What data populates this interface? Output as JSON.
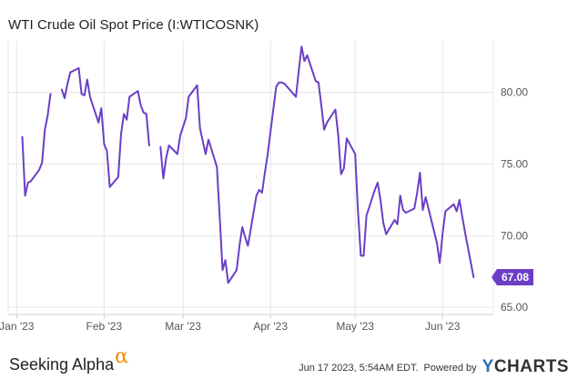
{
  "title": "WTI Crude Oil Spot Price (I:WTICOSNK)",
  "branding": {
    "left_text": "Seeking Alpha",
    "left_glyph": "α",
    "timestamp": "Jun 17 2023, 5:54AM EDT.",
    "powered_by": "Powered by",
    "provider_letter": "Y",
    "provider_rest": "CHARTS"
  },
  "colors": {
    "line": "#6a3fc6",
    "grid": "#e6e6e6",
    "axis_text": "#555555",
    "end_label_bg": "#6a3fc6",
    "end_label_text": "#ffffff"
  },
  "chart_data": {
    "type": "line",
    "title": "WTI Crude Oil Spot Price (I:WTICOSNK)",
    "xlabel": "",
    "ylabel": "",
    "x_ticks": [
      "Jan '23",
      "Feb '23",
      "Mar '23",
      "Apr '23",
      "May '23",
      "Jun '23"
    ],
    "x_tick_dates": [
      "2023-01-01",
      "2023-02-01",
      "2023-03-01",
      "2023-04-01",
      "2023-05-01",
      "2023-06-01"
    ],
    "y_ticks": [
      "65.00",
      "70.00",
      "75.00",
      "80.00"
    ],
    "ylim": [
      64.5,
      83.6
    ],
    "xlim": [
      "2022-12-29",
      "2023-06-19"
    ],
    "grid": true,
    "y_axis_side": "right",
    "end_value_label": "67.08",
    "series": [
      {
        "segments": [
          [
            [
              "2023-01-03",
              76.9
            ],
            [
              "2023-01-04",
              72.8
            ],
            [
              "2023-01-05",
              73.7
            ],
            [
              "2023-01-06",
              73.8
            ],
            [
              "2023-01-09",
              74.6
            ],
            [
              "2023-01-10",
              75.1
            ],
            [
              "2023-01-11",
              77.4
            ],
            [
              "2023-01-12",
              78.4
            ],
            [
              "2023-01-13",
              79.9
            ]
          ],
          [
            [
              "2023-01-17",
              80.2
            ],
            [
              "2023-01-18",
              79.6
            ],
            [
              "2023-01-19",
              80.6
            ],
            [
              "2023-01-20",
              81.4
            ],
            [
              "2023-01-23",
              81.7
            ],
            [
              "2023-01-24",
              79.9
            ],
            [
              "2023-01-25",
              79.8
            ],
            [
              "2023-01-26",
              80.9
            ],
            [
              "2023-01-27",
              79.7
            ],
            [
              "2023-01-30",
              77.9
            ],
            [
              "2023-01-31",
              78.9
            ],
            [
              "2023-02-01",
              76.4
            ],
            [
              "2023-02-02",
              75.9
            ],
            [
              "2023-02-03",
              73.4
            ],
            [
              "2023-02-06",
              74.1
            ],
            [
              "2023-02-07",
              77.1
            ],
            [
              "2023-02-08",
              78.5
            ],
            [
              "2023-02-09",
              78.1
            ],
            [
              "2023-02-10",
              79.7
            ],
            [
              "2023-02-13",
              80.1
            ],
            [
              "2023-02-14",
              79.1
            ],
            [
              "2023-02-15",
              78.6
            ],
            [
              "2023-02-16",
              78.5
            ],
            [
              "2023-02-17",
              76.3
            ]
          ],
          [
            [
              "2023-02-21",
              76.2
            ],
            [
              "2023-02-22",
              74.0
            ],
            [
              "2023-02-23",
              75.4
            ],
            [
              "2023-02-24",
              76.3
            ],
            [
              "2023-02-27",
              75.7
            ],
            [
              "2023-02-28",
              77.0
            ],
            [
              "2023-03-01",
              77.6
            ],
            [
              "2023-03-02",
              78.2
            ],
            [
              "2023-03-03",
              79.7
            ],
            [
              "2023-03-06",
              80.5
            ],
            [
              "2023-03-07",
              77.5
            ],
            [
              "2023-03-08",
              76.6
            ],
            [
              "2023-03-09",
              75.7
            ],
            [
              "2023-03-10",
              76.7
            ],
            [
              "2023-03-13",
              74.8
            ],
            [
              "2023-03-14",
              71.3
            ],
            [
              "2023-03-15",
              67.6
            ],
            [
              "2023-03-16",
              68.3
            ],
            [
              "2023-03-17",
              66.7
            ],
            [
              "2023-03-20",
              67.6
            ],
            [
              "2023-03-21",
              69.3
            ],
            [
              "2023-03-22",
              70.6
            ],
            [
              "2023-03-23",
              69.9
            ],
            [
              "2023-03-24",
              69.3
            ],
            [
              "2023-03-27",
              72.8
            ],
            [
              "2023-03-28",
              73.2
            ],
            [
              "2023-03-29",
              73.0
            ],
            [
              "2023-03-30",
              74.4
            ],
            [
              "2023-03-31",
              75.7
            ],
            [
              "2023-04-03",
              80.4
            ],
            [
              "2023-04-04",
              80.7
            ],
            [
              "2023-04-05",
              80.7
            ],
            [
              "2023-04-06",
              80.6
            ],
            [
              "2023-04-10",
              79.7
            ],
            [
              "2023-04-11",
              81.5
            ],
            [
              "2023-04-12",
              83.2
            ],
            [
              "2023-04-13",
              82.2
            ],
            [
              "2023-04-14",
              82.6
            ],
            [
              "2023-04-17",
              80.8
            ],
            [
              "2023-04-18",
              80.7
            ],
            [
              "2023-04-19",
              79.1
            ],
            [
              "2023-04-20",
              77.4
            ],
            [
              "2023-04-21",
              77.9
            ],
            [
              "2023-04-24",
              78.8
            ],
            [
              "2023-04-25",
              77.0
            ],
            [
              "2023-04-26",
              74.3
            ],
            [
              "2023-04-27",
              74.7
            ],
            [
              "2023-04-28",
              76.8
            ],
            [
              "2023-05-01",
              75.7
            ],
            [
              "2023-05-02",
              71.7
            ],
            [
              "2023-05-03",
              68.6
            ],
            [
              "2023-05-04",
              68.6
            ],
            [
              "2023-05-05",
              71.4
            ],
            [
              "2023-05-08",
              73.2
            ],
            [
              "2023-05-09",
              73.7
            ],
            [
              "2023-05-10",
              72.5
            ],
            [
              "2023-05-11",
              70.9
            ],
            [
              "2023-05-12",
              70.1
            ],
            [
              "2023-05-15",
              71.1
            ],
            [
              "2023-05-16",
              70.8
            ],
            [
              "2023-05-17",
              72.8
            ],
            [
              "2023-05-18",
              71.8
            ],
            [
              "2023-05-19",
              71.6
            ],
            [
              "2023-05-22",
              71.9
            ],
            [
              "2023-05-23",
              73.0
            ],
            [
              "2023-05-24",
              74.4
            ],
            [
              "2023-05-25",
              71.8
            ],
            [
              "2023-05-26",
              72.7
            ],
            [
              "2023-05-30",
              69.5
            ],
            [
              "2023-05-31",
              68.1
            ],
            [
              "2023-06-01",
              70.1
            ],
            [
              "2023-06-02",
              71.7
            ],
            [
              "2023-06-05",
              72.2
            ],
            [
              "2023-06-06",
              71.7
            ],
            [
              "2023-06-07",
              72.5
            ],
            [
              "2023-06-08",
              71.3
            ],
            [
              "2023-06-09",
              70.2
            ],
            [
              "2023-06-12",
              67.1
            ]
          ]
        ]
      }
    ]
  }
}
